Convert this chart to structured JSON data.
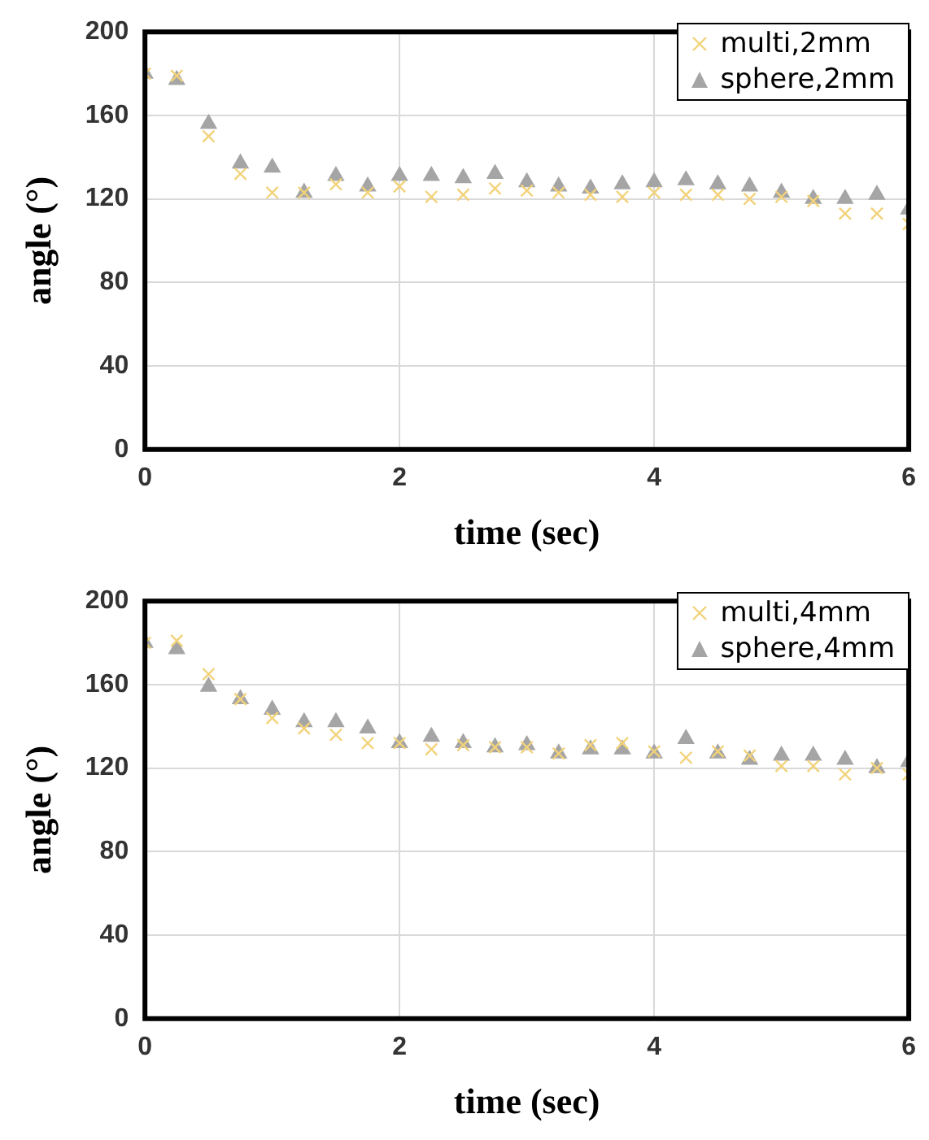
{
  "chart_data": [
    {
      "type": "scatter",
      "xlabel": "time (sec)",
      "ylabel": "angle (°)",
      "xlim": [
        0,
        6
      ],
      "xticks": [
        0,
        2,
        4,
        6
      ],
      "ylim": [
        0,
        200
      ],
      "yticks": [
        0,
        40,
        80,
        120,
        160,
        200
      ],
      "grid": true,
      "legend": "top right",
      "x": [
        0,
        0.25,
        0.5,
        0.75,
        1,
        1.25,
        1.5,
        1.75,
        2,
        2.25,
        2.5,
        2.75,
        3,
        3.25,
        3.5,
        3.75,
        4,
        4.25,
        4.5,
        4.75,
        5,
        5.25,
        5.5,
        5.75,
        6
      ],
      "series": [
        {
          "name": "multi,2mm",
          "color": "#f2d27a",
          "marker": "cross",
          "values": [
            180,
            179,
            150,
            132,
            123,
            123,
            127,
            123,
            126,
            121,
            122,
            125,
            124,
            123,
            122,
            121,
            123,
            122,
            122,
            120,
            121,
            119,
            113,
            113,
            108
          ]
        },
        {
          "name": "sphere,2mm",
          "color": "#a5a5a5",
          "marker": "triangle",
          "values": [
            180,
            177,
            156,
            137,
            135,
            123,
            131,
            126,
            131,
            131,
            130,
            132,
            128,
            126,
            125,
            127,
            128,
            129,
            127,
            126,
            123,
            120,
            120,
            122,
            115
          ]
        }
      ]
    },
    {
      "type": "scatter",
      "xlabel": "time (sec)",
      "ylabel": "angle (°)",
      "xlim": [
        0,
        6
      ],
      "xticks": [
        0,
        2,
        4,
        6
      ],
      "ylim": [
        0,
        200
      ],
      "yticks": [
        0,
        40,
        80,
        120,
        160,
        200
      ],
      "grid": true,
      "legend": "top right",
      "x": [
        0,
        0.25,
        0.5,
        0.75,
        1,
        1.25,
        1.5,
        1.75,
        2,
        2.25,
        2.5,
        2.75,
        3,
        3.25,
        3.5,
        3.75,
        4,
        4.25,
        4.5,
        4.75,
        5,
        5.25,
        5.5,
        5.75,
        6
      ],
      "series": [
        {
          "name": "multi,4mm",
          "color": "#f2d27a",
          "marker": "cross",
          "values": [
            180,
            181,
            165,
            153,
            144,
            139,
            136,
            132,
            132,
            129,
            131,
            130,
            130,
            127,
            131,
            132,
            128,
            125,
            128,
            126,
            121,
            121,
            117,
            120,
            117
          ]
        },
        {
          "name": "sphere,4mm",
          "color": "#a5a5a5",
          "marker": "triangle",
          "values": [
            180,
            177,
            159,
            153,
            148,
            142,
            142,
            139,
            132,
            135,
            132,
            130,
            131,
            127,
            129,
            129,
            127,
            134,
            127,
            124,
            126,
            126,
            124,
            120,
            123
          ]
        }
      ]
    }
  ]
}
